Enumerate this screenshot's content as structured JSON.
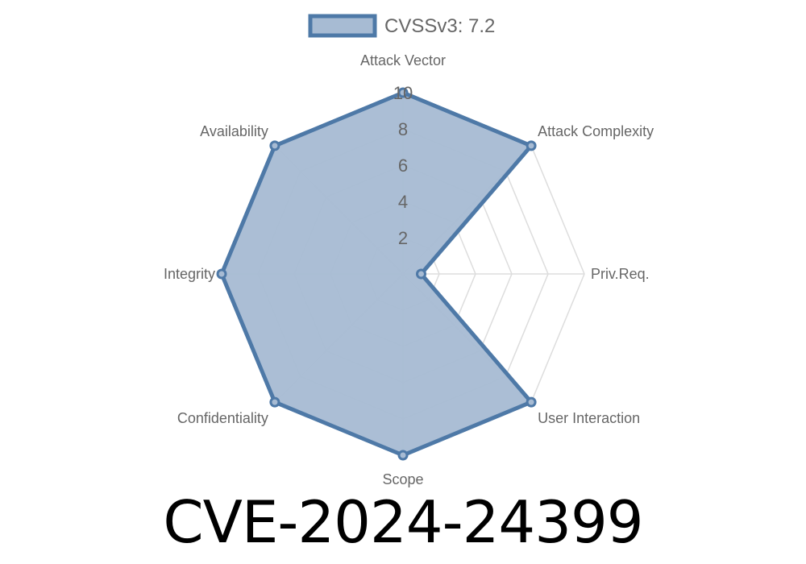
{
  "chart_data": {
    "type": "radar",
    "series": [
      {
        "name": "CVSSv3: 7.2",
        "values": [
          10,
          10,
          1,
          10,
          10,
          10,
          10,
          10
        ]
      }
    ],
    "categories": [
      "Attack Vector",
      "Attack Complexity",
      "Priv.Req.",
      "User Interaction",
      "Scope",
      "Confidentiality",
      "Integrity",
      "Availability"
    ],
    "ticks": [
      "2",
      "4",
      "6",
      "8",
      "10"
    ],
    "rlim": [
      0,
      10
    ],
    "grid": true,
    "legend_placement": "top",
    "colors": {
      "line": "#4e79a7",
      "fill": "#a7bbd3",
      "grid": "#dddddd"
    }
  },
  "title": "CVE-2024-24399"
}
